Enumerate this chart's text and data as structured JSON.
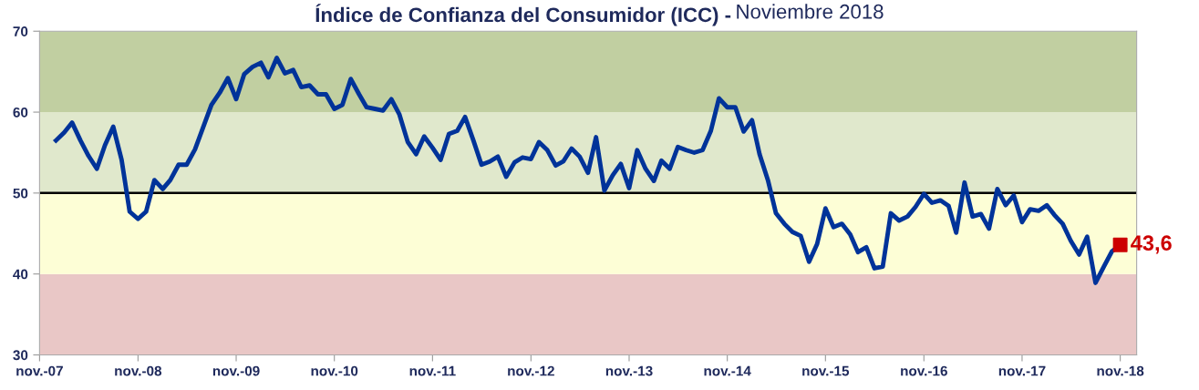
{
  "chart_data": {
    "type": "line",
    "title": "Índice de Confianza del Consumidor (ICC) -",
    "subtitle": "Noviembre 2018",
    "x": [
      "2008-01",
      "2008-02",
      "2008-03",
      "2008-04",
      "2008-05",
      "2008-06",
      "2008-07",
      "2008-08",
      "2008-09",
      "2008-10",
      "2008-11",
      "2008-12",
      "2009-01",
      "2009-02",
      "2009-03",
      "2009-04",
      "2009-05",
      "2009-06",
      "2009-07",
      "2009-08",
      "2009-09",
      "2009-10",
      "2009-11",
      "2009-12",
      "2010-01",
      "2010-02",
      "2010-03",
      "2010-04",
      "2010-05",
      "2010-06",
      "2010-07",
      "2010-08",
      "2010-09",
      "2010-10",
      "2010-11",
      "2010-12",
      "2011-01",
      "2011-02",
      "2011-03",
      "2011-04",
      "2011-05",
      "2011-06",
      "2011-07",
      "2011-08",
      "2011-09",
      "2011-10",
      "2011-11",
      "2011-12",
      "2012-01",
      "2012-02",
      "2012-03",
      "2012-04",
      "2012-05",
      "2012-06",
      "2012-07",
      "2012-08",
      "2012-09",
      "2012-10",
      "2012-11",
      "2012-12",
      "2013-01",
      "2013-02",
      "2013-03",
      "2013-04",
      "2013-05",
      "2013-06",
      "2013-07",
      "2013-08",
      "2013-09",
      "2013-10",
      "2013-11",
      "2013-12",
      "2014-01",
      "2014-02",
      "2014-03",
      "2014-04",
      "2014-05",
      "2014-06",
      "2014-07",
      "2014-08",
      "2014-09",
      "2014-10",
      "2014-11",
      "2014-12",
      "2015-01",
      "2015-02",
      "2015-03",
      "2015-04",
      "2015-05",
      "2015-06",
      "2015-07",
      "2015-08",
      "2015-09",
      "2015-10",
      "2015-11",
      "2015-12",
      "2016-01",
      "2016-02",
      "2016-03",
      "2016-04",
      "2016-05",
      "2016-06",
      "2016-07",
      "2016-08",
      "2016-09",
      "2016-10",
      "2016-11",
      "2016-12",
      "2017-01",
      "2017-02",
      "2017-03",
      "2017-04",
      "2017-05",
      "2017-06",
      "2017-07",
      "2017-08",
      "2017-09",
      "2017-10",
      "2017-11",
      "2017-12",
      "2018-01",
      "2018-02",
      "2018-03",
      "2018-04",
      "2018-05",
      "2018-06",
      "2018-07",
      "2018-08",
      "2018-09",
      "2018-10",
      "2018-11"
    ],
    "series": [
      {
        "color": "#003399",
        "values": [
          56.5,
          57.5,
          58.7,
          56.5,
          54.6,
          53.0,
          55.9,
          58.2,
          54.1,
          47.7,
          46.8,
          47.7,
          51.6,
          50.5,
          51.6,
          53.5,
          53.5,
          55.4,
          58.1,
          60.9,
          62.4,
          64.2,
          61.6,
          64.7,
          65.6,
          66.1,
          64.3,
          66.7,
          64.8,
          65.2,
          63.1,
          63.3,
          62.2,
          62.2,
          60.4,
          60.9,
          64.1,
          62.2,
          60.6,
          60.4,
          60.2,
          61.6,
          59.7,
          56.3,
          54.8,
          57.0,
          55.6,
          54.1,
          57.3,
          57.7,
          59.4,
          56.5,
          53.5,
          53.9,
          54.5,
          52.0,
          53.8,
          54.4,
          54.2,
          56.3,
          55.3,
          53.4,
          53.9,
          55.5,
          54.5,
          52.5,
          56.9,
          50.3,
          52.2,
          53.6,
          50.6,
          55.3,
          53.0,
          51.5,
          54.0,
          53.0,
          55.7,
          55.3,
          55.0,
          55.3,
          57.7,
          61.7,
          60.6,
          60.6,
          57.6,
          59.0,
          54.8,
          51.6,
          47.5,
          46.2,
          45.2,
          44.7,
          41.5,
          43.7,
          48.1,
          45.8,
          46.2,
          44.9,
          42.7,
          43.3,
          40.7,
          40.9,
          47.5,
          46.6,
          47.1,
          48.3,
          49.9,
          48.8,
          49.1,
          48.4,
          45.1,
          51.3,
          47.1,
          47.4,
          45.6,
          50.5,
          48.5,
          49.7,
          46.4,
          48.0,
          47.8,
          48.5,
          47.3,
          46.2,
          44.1,
          42.4,
          44.6,
          38.9,
          40.9,
          42.8,
          43.6
        ]
      },
      {
        "type": "scatter",
        "x": [
          "2018-11"
        ],
        "color": "#cc0000",
        "marker": "square",
        "values": [
          43.6
        ],
        "value_labels": [
          "43,6"
        ]
      }
    ],
    "xlim": [
      "2007-11",
      "2019-01"
    ],
    "xticks": [
      {
        "value": "2007-11",
        "label": "nov.-07"
      },
      {
        "value": "2008-11",
        "label": "nov.-08"
      },
      {
        "value": "2009-11",
        "label": "nov.-09"
      },
      {
        "value": "2010-11",
        "label": "nov.-10"
      },
      {
        "value": "2011-11",
        "label": "nov.-11"
      },
      {
        "value": "2012-11",
        "label": "nov.-12"
      },
      {
        "value": "2013-11",
        "label": "nov.-13"
      },
      {
        "value": "2014-11",
        "label": "nov.-14"
      },
      {
        "value": "2015-11",
        "label": "nov.-15"
      },
      {
        "value": "2016-11",
        "label": "nov.-16"
      },
      {
        "value": "2017-11",
        "label": "nov.-17"
      },
      {
        "value": "2018-11",
        "label": "nov.-18"
      }
    ],
    "ylim": [
      30,
      70
    ],
    "yticks": [
      30,
      40,
      50,
      60,
      70
    ],
    "bands": [
      {
        "axis": "y",
        "from": 30,
        "to": 40,
        "color": "#e9c7c6"
      },
      {
        "axis": "y",
        "from": 40,
        "to": 50,
        "color": "#fdfed6"
      },
      {
        "axis": "y",
        "from": 50,
        "to": 60,
        "color": "#e0e8cc"
      },
      {
        "axis": "y",
        "from": 60,
        "to": 70,
        "color": "#c1cfa1"
      }
    ],
    "ref_lines": [
      {
        "axis": "y",
        "value": 50,
        "color": "#000000",
        "line_style": "solid"
      }
    ],
    "legend": false,
    "grid": false
  }
}
